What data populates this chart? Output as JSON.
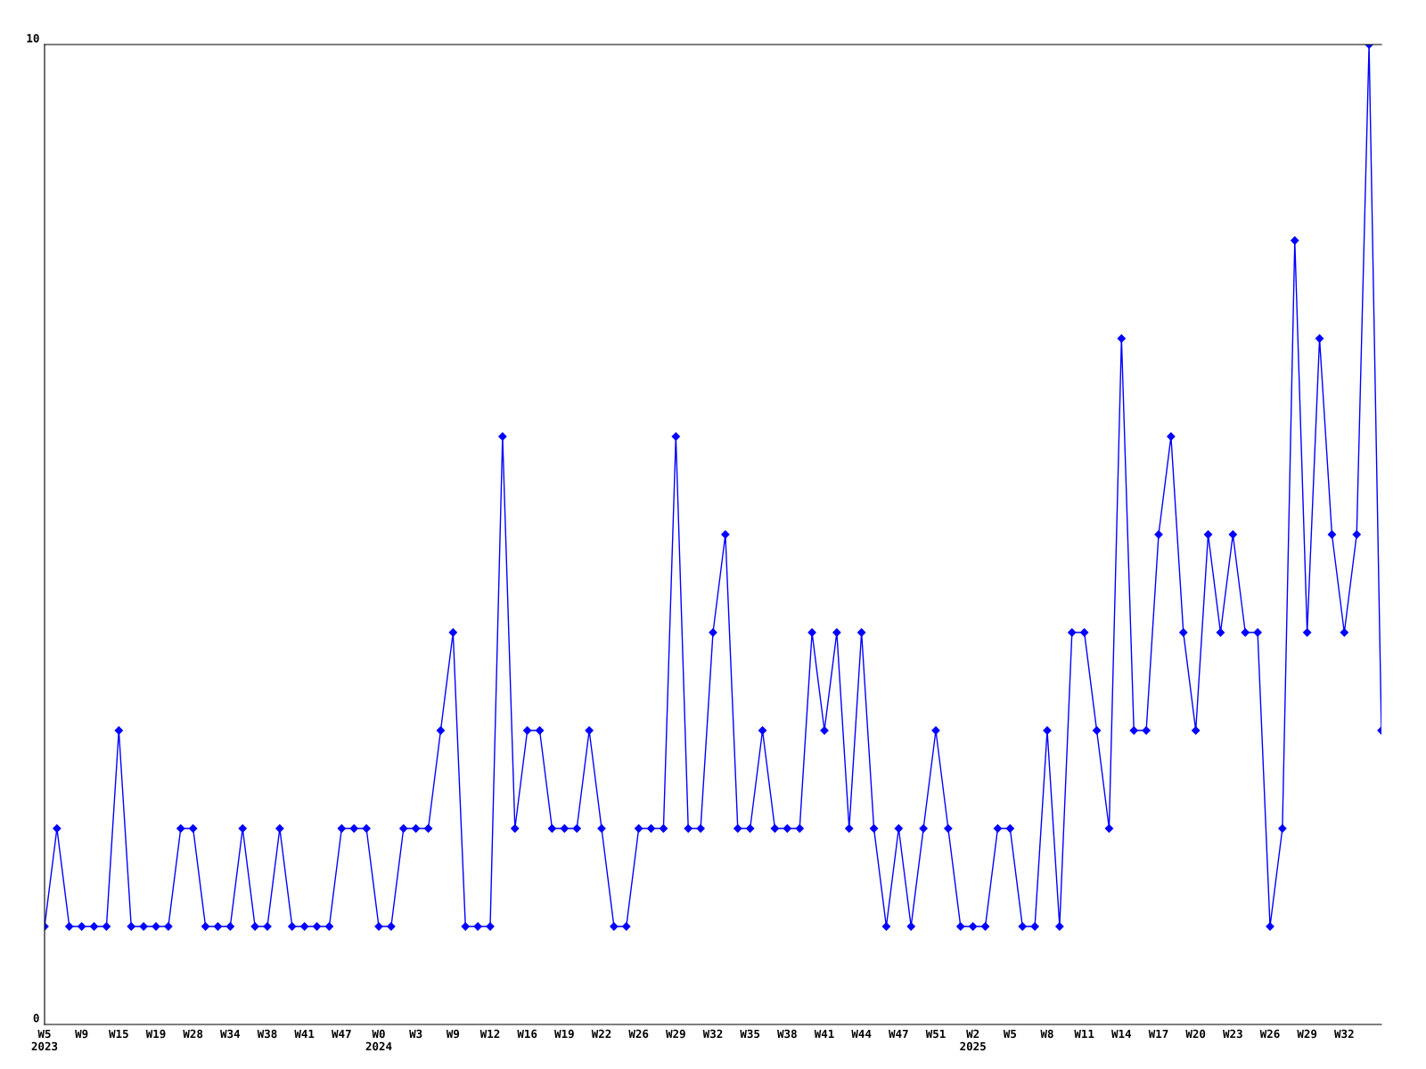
{
  "chart_data": {
    "type": "line",
    "categories": [
      "W5\n2023",
      null,
      null,
      "W9",
      null,
      null,
      "W15",
      null,
      null,
      "W19",
      null,
      null,
      "W28",
      null,
      null,
      "W34",
      null,
      null,
      "W38",
      null,
      null,
      "W41",
      null,
      null,
      "W47",
      null,
      null,
      "W0\n2024",
      null,
      null,
      "W3",
      null,
      null,
      "W9",
      null,
      null,
      "W12",
      null,
      null,
      "W16",
      null,
      null,
      "W19",
      null,
      null,
      "W22",
      null,
      null,
      "W26",
      null,
      null,
      "W29",
      null,
      null,
      "W32",
      null,
      null,
      "W35",
      null,
      null,
      "W38",
      null,
      null,
      "W41",
      null,
      null,
      "W44",
      null,
      null,
      "W47",
      null,
      null,
      "W51",
      null,
      null,
      "W2\n2025",
      null,
      null,
      "W5",
      null,
      null,
      "W8",
      null,
      null,
      "W11",
      null,
      null,
      "W14",
      null,
      null,
      "W17",
      null,
      null,
      "W20",
      null,
      null,
      "W23",
      null,
      null,
      "W26",
      null,
      null,
      "W29",
      null,
      null,
      "W32",
      null,
      null,
      null
    ],
    "series": [
      {
        "color": "#0000ff",
        "values": [
          1,
          2,
          1,
          1,
          1,
          1,
          3,
          1,
          1,
          1,
          1,
          2,
          2,
          1,
          1,
          1,
          2,
          1,
          1,
          2,
          1,
          1,
          1,
          1,
          2,
          2,
          2,
          1,
          1,
          2,
          2,
          2,
          3,
          4,
          1,
          1,
          1,
          6,
          2,
          3,
          3,
          2,
          2,
          2,
          3,
          2,
          1,
          1,
          2,
          2,
          2,
          6,
          2,
          2,
          4,
          5,
          2,
          2,
          3,
          2,
          2,
          2,
          4,
          3,
          4,
          2,
          4,
          2,
          1,
          2,
          1,
          2,
          3,
          2,
          1,
          1,
          1,
          2,
          2,
          1,
          1,
          3,
          1,
          4,
          4,
          3,
          2,
          7,
          3,
          3,
          5,
          6,
          4,
          3,
          5,
          4,
          5,
          4,
          4,
          1,
          2,
          8,
          4,
          7,
          5,
          4,
          5,
          10,
          3
        ]
      }
    ],
    "ylim": [
      0,
      10
    ],
    "yticks": [
      0,
      10
    ],
    "grid": false,
    "marker": "diamond",
    "line_style": "solid"
  }
}
